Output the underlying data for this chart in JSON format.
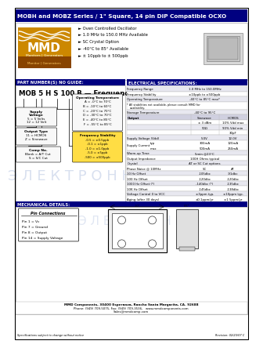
{
  "title": "MOBH and MOBZ Series / 1\" Square, 14 pin DIP Compatible OCXO",
  "title_bg": "#000080",
  "title_color": "#ffffff",
  "features": [
    "Oven Controlled Oscillator",
    "1.0 MHz to 150.0 MHz Available",
    "SC Crystal Option",
    "-40°C to 85° Available",
    "± 10ppb to ± 500ppb"
  ],
  "part_number_guide_title": "PART NUMBER(S) NO GUIDE:",
  "elec_spec_title": "ELECTRICAL SPECIFICATIONS:",
  "part_number_example": "MOB 5 H S 100 B — Frequency",
  "section_bg": "#000080",
  "section_color": "#ffffff",
  "watermark_text": "Э Л Е К Т Р О Н Н",
  "mech_title": "MECHANICAL DETAILS:",
  "pin_connections": [
    "Pin 1 = Vc",
    "Pin 7 = Ground",
    "Pin 8 = Output",
    "Pin 14 = Supply Voltage"
  ],
  "footer1": "MMD Components, 30400 Esperanza, Rancho Santa Margarita, CA. 92688",
  "footer2": "Phone: (949) 709-5075, Fax: (949) 709-3536,   www.mmdcomponents.com",
  "footer3": "Sales@mmdcomp.com",
  "footer4": "Specifications subject to change without notice",
  "footer5": "Revision: 02/23/07 C"
}
